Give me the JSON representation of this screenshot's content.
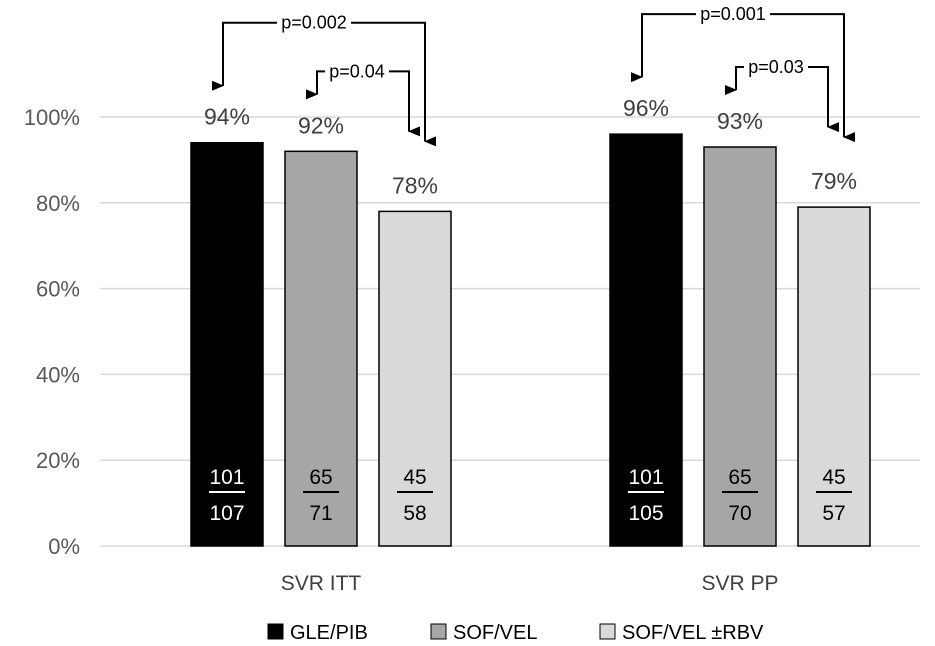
{
  "chart_data": {
    "type": "bar",
    "categories": [
      "SVR ITT",
      "SVR PP"
    ],
    "series": [
      {
        "name": "GLE/PIB",
        "color": "#000000",
        "text_color": "#ffffff",
        "values": [
          94,
          96
        ],
        "data_labels": [
          "94%",
          "96%"
        ],
        "numerators": [
          "101",
          "101"
        ],
        "denominators": [
          "107",
          "105"
        ]
      },
      {
        "name": "SOF/VEL",
        "color": "#a6a6a6",
        "text_color": "#000000",
        "values": [
          92,
          93
        ],
        "data_labels": [
          "92%",
          "93%"
        ],
        "numerators": [
          "65",
          "65"
        ],
        "denominators": [
          "71",
          "70"
        ]
      },
      {
        "name": "SOF/VEL ±RBV",
        "color": "#d9d9d9",
        "text_color": "#000000",
        "values": [
          78,
          79
        ],
        "data_labels": [
          "78%",
          "79%"
        ],
        "numerators": [
          "45",
          "45"
        ],
        "denominators": [
          "58",
          "57"
        ]
      }
    ],
    "ylim": [
      0,
      100
    ],
    "yticks": [
      0,
      20,
      40,
      60,
      80,
      100
    ],
    "ytick_labels": [
      "0%",
      "20%",
      "40%",
      "60%",
      "80%",
      "100%"
    ],
    "title": "",
    "xlabel": "",
    "ylabel": "",
    "grid": true,
    "legend_position": "bottom",
    "annotations": [
      {
        "category": 0,
        "from_series": 0,
        "to_series": 2,
        "label": "p=0.002"
      },
      {
        "category": 0,
        "from_series": 1,
        "to_series": 2,
        "label": "p=0.04"
      },
      {
        "category": 1,
        "from_series": 0,
        "to_series": 2,
        "label": "p=0.001"
      },
      {
        "category": 1,
        "from_series": 1,
        "to_series": 2,
        "label": "p=0.03"
      }
    ]
  }
}
